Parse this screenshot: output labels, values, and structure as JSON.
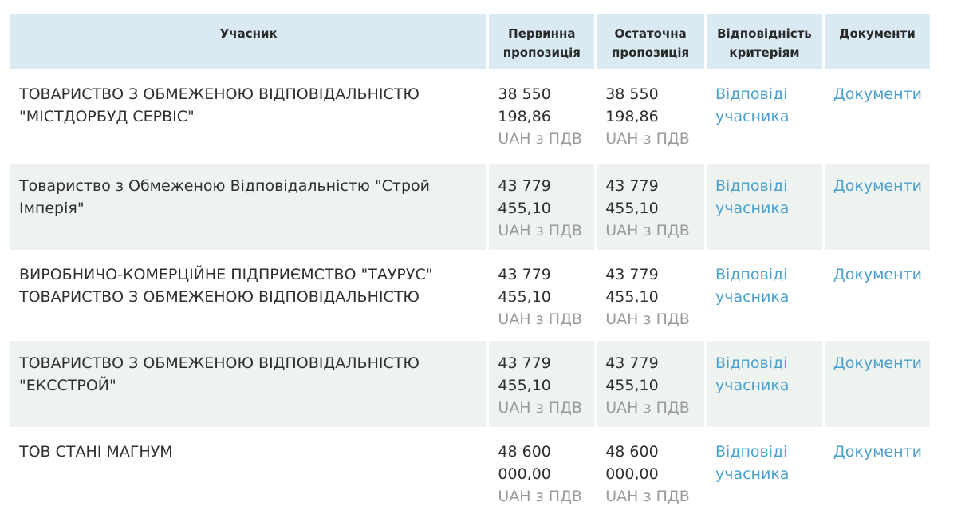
{
  "headers": {
    "participant": "Учасник",
    "initial_offer": "Первинна пропозиція",
    "final_offer": "Остаточна пропозиція",
    "criteria": "Відповідність критеріям",
    "documents": "Документи"
  },
  "rows": [
    {
      "participant": "ТОВАРИСТВО З ОБМЕЖЕНОЮ ВІДПОВІДАЛЬНІСТЮ \"МІСТДОРБУД СЕРВІС\"",
      "initial_amount": "38 550 198,86",
      "initial_currency": "UAH з ПДВ",
      "final_amount": "38 550 198,86",
      "final_currency": "UAH з ПДВ",
      "criteria_link": "Відповіді учасника",
      "documents_link": "Документи"
    },
    {
      "participant": "Товариство з Обмеженою Відповідальністю \"Строй Імперія\"",
      "initial_amount": "43 779 455,10",
      "initial_currency": "UAH з ПДВ",
      "final_amount": "43 779 455,10",
      "final_currency": "UAH з ПДВ",
      "criteria_link": "Відповіді учасника",
      "documents_link": "Документи"
    },
    {
      "participant": "ВИРОБНИЧО-КОМЕРЦІЙНЕ ПІДПРИЄМСТВО \"ТАУРУС\" ТОВАРИСТВО З ОБМЕЖЕНОЮ ВІДПОВІДАЛЬНІСТЮ",
      "initial_amount": "43 779 455,10",
      "initial_currency": "UAH з ПДВ",
      "final_amount": "43 779 455,10",
      "final_currency": "UAH з ПДВ",
      "criteria_link": "Відповіді учасника",
      "documents_link": "Документи"
    },
    {
      "participant": "ТОВАРИСТВО З ОБМЕЖЕНОЮ ВІДПОВІДАЛЬНІСТЮ \"ЕКССТРОЙ\"",
      "initial_amount": "43 779 455,10",
      "initial_currency": "UAH з ПДВ",
      "final_amount": "43 779 455,10",
      "final_currency": "UAH з ПДВ",
      "criteria_link": "Відповіді учасника",
      "documents_link": "Документи"
    },
    {
      "participant": "ТОВ СТАНІ МАГНУМ",
      "initial_amount": "48 600 000,00",
      "initial_currency": "UAH з ПДВ",
      "final_amount": "48 600 000,00",
      "final_currency": "UAH з ПДВ",
      "criteria_link": "Відповіді учасника",
      "documents_link": "Документи"
    }
  ],
  "colors": {
    "header_bg": "#d9eaf3",
    "alt_row_bg": "#eff3f0",
    "link": "#4aa0cf",
    "muted": "#9a9a9a"
  }
}
